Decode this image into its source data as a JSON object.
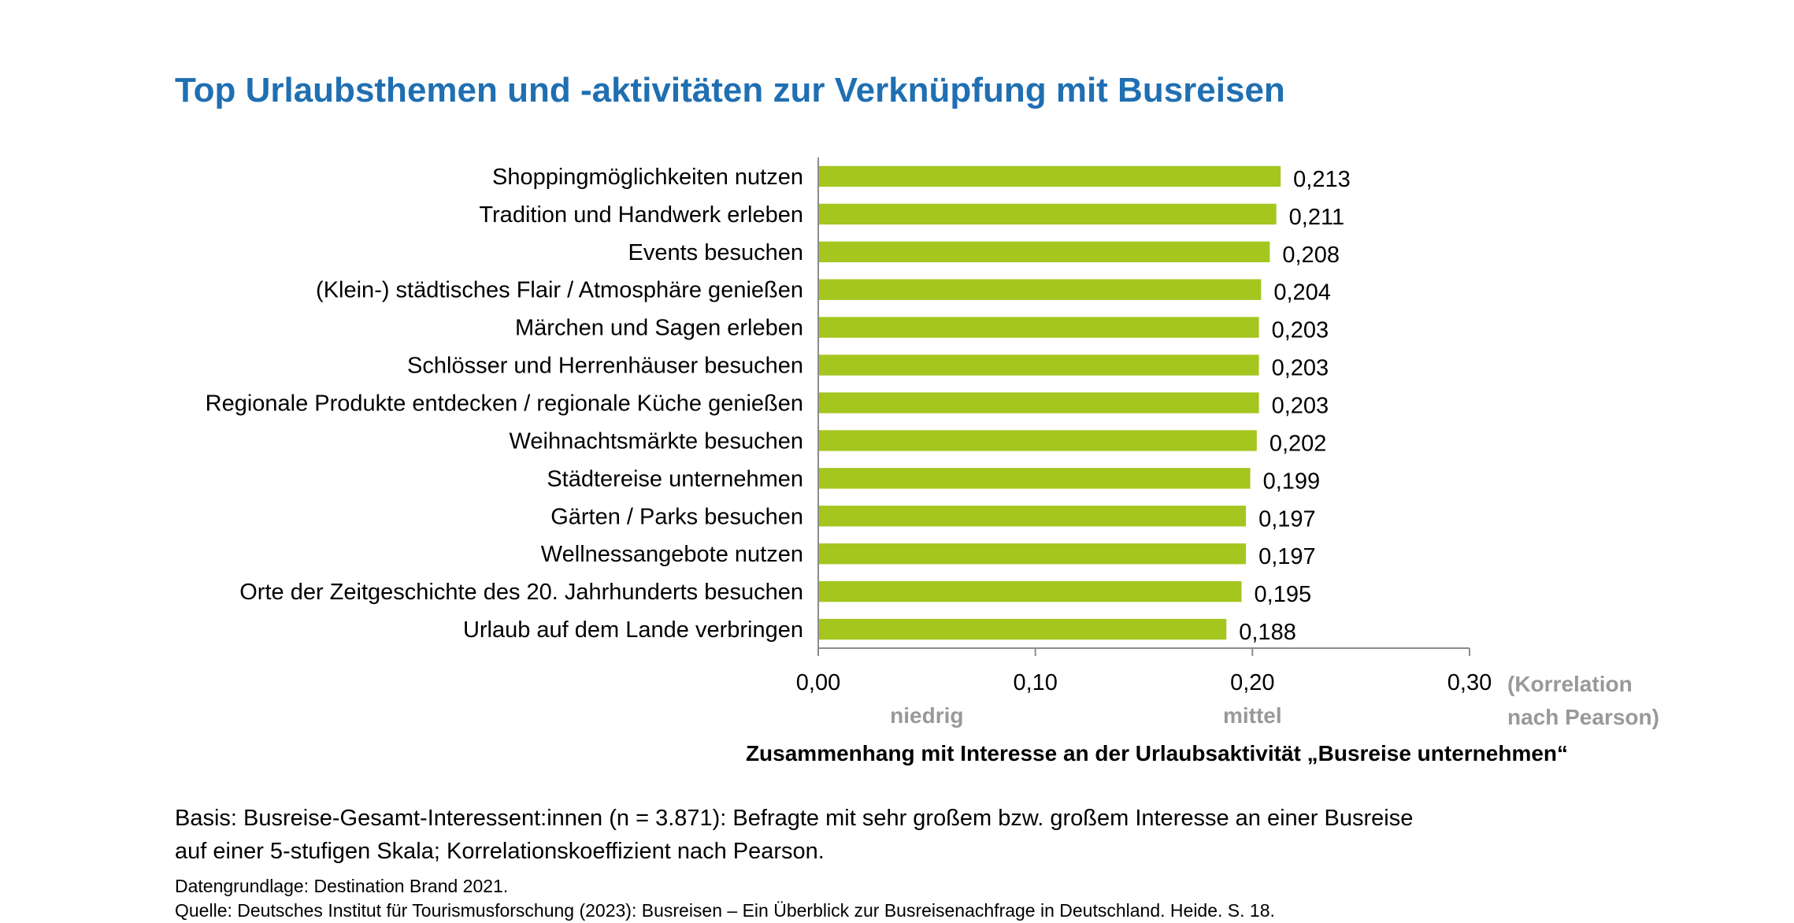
{
  "title": "Top Urlaubsthemen und -aktivitäten zur Verknüpfung mit Busreisen",
  "chart_data": {
    "type": "bar",
    "orientation": "horizontal",
    "categories": [
      "Shoppingmöglichkeiten nutzen",
      "Tradition und Handwerk erleben",
      "Events besuchen",
      "(Klein-) städtisches Flair / Atmosphäre genießen",
      "Märchen und Sagen erleben",
      "Schlösser und Herrenhäuser besuchen",
      "Regionale Produkte entdecken / regionale Küche genießen",
      "Weihnachtsmärkte besuchen",
      "Städtereise unternehmen",
      "Gärten / Parks besuchen",
      "Wellnessangebote nutzen",
      "Orte der Zeitgeschichte des 20. Jahrhunderts besuchen",
      "Urlaub auf dem Lande verbringen"
    ],
    "values": [
      0.213,
      0.211,
      0.208,
      0.204,
      0.203,
      0.203,
      0.203,
      0.202,
      0.199,
      0.197,
      0.197,
      0.195,
      0.188
    ],
    "value_labels": [
      "0,213",
      "0,211",
      "0,208",
      "0,204",
      "0,203",
      "0,203",
      "0,203",
      "0,202",
      "0,199",
      "0,197",
      "0,197",
      "0,195",
      "0,188"
    ],
    "xlim": [
      0,
      0.3
    ],
    "xticks": [
      0,
      0.1,
      0.2,
      0.3
    ],
    "xtick_labels": [
      "0,00",
      "0,10",
      "0,20",
      "0,30"
    ],
    "tick_annotations": [
      {
        "at": 0.05,
        "text": "niedrig"
      },
      {
        "at": 0.2,
        "text": "mittel"
      }
    ],
    "unit_note": [
      "(Korrelation",
      "nach Pearson)"
    ],
    "xlabel": "Zusammenhang mit Interesse an der Urlaubsaktivität „Busreise unternehmen“",
    "bar_color": "#a4c61f",
    "grid": false
  },
  "footnotes": {
    "basis_line1": "Basis: Busreise-Gesamt-Interessent:innen (n = 3.871): Befragte mit sehr großem bzw. großem Interesse an einer Busreise",
    "basis_line2": "auf einer 5-stufigen Skala; Korrelationskoeffizient nach Pearson.",
    "data_source": "Datengrundlage: Destination Brand 2021.",
    "citation": "Quelle: Deutsches Institut für Tourismusforschung (2023): Busreisen – Ein Überblick zur Busreisenachfrage in Deutschland. Heide. S. 18."
  }
}
